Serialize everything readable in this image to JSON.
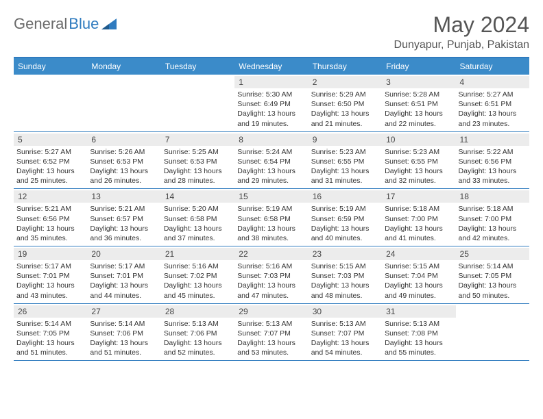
{
  "logo": {
    "text1": "General",
    "text2": "Blue"
  },
  "title": "May 2024",
  "location": "Dunyapur, Punjab, Pakistan",
  "colors": {
    "header_bar": "#3b8bc9",
    "header_border": "#2f7bbf",
    "daynum_bg": "#ececec",
    "text_gray": "#555555",
    "body_text": "#333333"
  },
  "daynames": [
    "Sunday",
    "Monday",
    "Tuesday",
    "Wednesday",
    "Thursday",
    "Friday",
    "Saturday"
  ],
  "weeks": [
    [
      {
        "n": "",
        "sr": "",
        "ss": "",
        "dl": ""
      },
      {
        "n": "",
        "sr": "",
        "ss": "",
        "dl": ""
      },
      {
        "n": "",
        "sr": "",
        "ss": "",
        "dl": ""
      },
      {
        "n": "1",
        "sr": "Sunrise: 5:30 AM",
        "ss": "Sunset: 6:49 PM",
        "dl": "Daylight: 13 hours and 19 minutes."
      },
      {
        "n": "2",
        "sr": "Sunrise: 5:29 AM",
        "ss": "Sunset: 6:50 PM",
        "dl": "Daylight: 13 hours and 21 minutes."
      },
      {
        "n": "3",
        "sr": "Sunrise: 5:28 AM",
        "ss": "Sunset: 6:51 PM",
        "dl": "Daylight: 13 hours and 22 minutes."
      },
      {
        "n": "4",
        "sr": "Sunrise: 5:27 AM",
        "ss": "Sunset: 6:51 PM",
        "dl": "Daylight: 13 hours and 23 minutes."
      }
    ],
    [
      {
        "n": "5",
        "sr": "Sunrise: 5:27 AM",
        "ss": "Sunset: 6:52 PM",
        "dl": "Daylight: 13 hours and 25 minutes."
      },
      {
        "n": "6",
        "sr": "Sunrise: 5:26 AM",
        "ss": "Sunset: 6:53 PM",
        "dl": "Daylight: 13 hours and 26 minutes."
      },
      {
        "n": "7",
        "sr": "Sunrise: 5:25 AM",
        "ss": "Sunset: 6:53 PM",
        "dl": "Daylight: 13 hours and 28 minutes."
      },
      {
        "n": "8",
        "sr": "Sunrise: 5:24 AM",
        "ss": "Sunset: 6:54 PM",
        "dl": "Daylight: 13 hours and 29 minutes."
      },
      {
        "n": "9",
        "sr": "Sunrise: 5:23 AM",
        "ss": "Sunset: 6:55 PM",
        "dl": "Daylight: 13 hours and 31 minutes."
      },
      {
        "n": "10",
        "sr": "Sunrise: 5:23 AM",
        "ss": "Sunset: 6:55 PM",
        "dl": "Daylight: 13 hours and 32 minutes."
      },
      {
        "n": "11",
        "sr": "Sunrise: 5:22 AM",
        "ss": "Sunset: 6:56 PM",
        "dl": "Daylight: 13 hours and 33 minutes."
      }
    ],
    [
      {
        "n": "12",
        "sr": "Sunrise: 5:21 AM",
        "ss": "Sunset: 6:56 PM",
        "dl": "Daylight: 13 hours and 35 minutes."
      },
      {
        "n": "13",
        "sr": "Sunrise: 5:21 AM",
        "ss": "Sunset: 6:57 PM",
        "dl": "Daylight: 13 hours and 36 minutes."
      },
      {
        "n": "14",
        "sr": "Sunrise: 5:20 AM",
        "ss": "Sunset: 6:58 PM",
        "dl": "Daylight: 13 hours and 37 minutes."
      },
      {
        "n": "15",
        "sr": "Sunrise: 5:19 AM",
        "ss": "Sunset: 6:58 PM",
        "dl": "Daylight: 13 hours and 38 minutes."
      },
      {
        "n": "16",
        "sr": "Sunrise: 5:19 AM",
        "ss": "Sunset: 6:59 PM",
        "dl": "Daylight: 13 hours and 40 minutes."
      },
      {
        "n": "17",
        "sr": "Sunrise: 5:18 AM",
        "ss": "Sunset: 7:00 PM",
        "dl": "Daylight: 13 hours and 41 minutes."
      },
      {
        "n": "18",
        "sr": "Sunrise: 5:18 AM",
        "ss": "Sunset: 7:00 PM",
        "dl": "Daylight: 13 hours and 42 minutes."
      }
    ],
    [
      {
        "n": "19",
        "sr": "Sunrise: 5:17 AM",
        "ss": "Sunset: 7:01 PM",
        "dl": "Daylight: 13 hours and 43 minutes."
      },
      {
        "n": "20",
        "sr": "Sunrise: 5:17 AM",
        "ss": "Sunset: 7:01 PM",
        "dl": "Daylight: 13 hours and 44 minutes."
      },
      {
        "n": "21",
        "sr": "Sunrise: 5:16 AM",
        "ss": "Sunset: 7:02 PM",
        "dl": "Daylight: 13 hours and 45 minutes."
      },
      {
        "n": "22",
        "sr": "Sunrise: 5:16 AM",
        "ss": "Sunset: 7:03 PM",
        "dl": "Daylight: 13 hours and 47 minutes."
      },
      {
        "n": "23",
        "sr": "Sunrise: 5:15 AM",
        "ss": "Sunset: 7:03 PM",
        "dl": "Daylight: 13 hours and 48 minutes."
      },
      {
        "n": "24",
        "sr": "Sunrise: 5:15 AM",
        "ss": "Sunset: 7:04 PM",
        "dl": "Daylight: 13 hours and 49 minutes."
      },
      {
        "n": "25",
        "sr": "Sunrise: 5:14 AM",
        "ss": "Sunset: 7:05 PM",
        "dl": "Daylight: 13 hours and 50 minutes."
      }
    ],
    [
      {
        "n": "26",
        "sr": "Sunrise: 5:14 AM",
        "ss": "Sunset: 7:05 PM",
        "dl": "Daylight: 13 hours and 51 minutes."
      },
      {
        "n": "27",
        "sr": "Sunrise: 5:14 AM",
        "ss": "Sunset: 7:06 PM",
        "dl": "Daylight: 13 hours and 51 minutes."
      },
      {
        "n": "28",
        "sr": "Sunrise: 5:13 AM",
        "ss": "Sunset: 7:06 PM",
        "dl": "Daylight: 13 hours and 52 minutes."
      },
      {
        "n": "29",
        "sr": "Sunrise: 5:13 AM",
        "ss": "Sunset: 7:07 PM",
        "dl": "Daylight: 13 hours and 53 minutes."
      },
      {
        "n": "30",
        "sr": "Sunrise: 5:13 AM",
        "ss": "Sunset: 7:07 PM",
        "dl": "Daylight: 13 hours and 54 minutes."
      },
      {
        "n": "31",
        "sr": "Sunrise: 5:13 AM",
        "ss": "Sunset: 7:08 PM",
        "dl": "Daylight: 13 hours and 55 minutes."
      },
      {
        "n": "",
        "sr": "",
        "ss": "",
        "dl": ""
      }
    ]
  ]
}
